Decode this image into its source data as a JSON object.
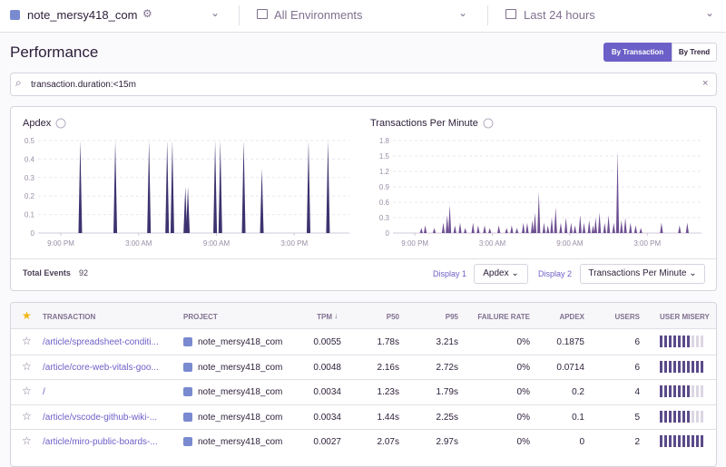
{
  "header": {
    "project": "note_mersy418_com",
    "environment": "All Environments",
    "period": "Last 24 hours"
  },
  "page": {
    "title": "Performance",
    "tabs": [
      "By Transaction",
      "By Trend"
    ],
    "search": "transaction.duration:<15m"
  },
  "chart_data": [
    {
      "type": "area",
      "title": "Apdex",
      "color": "#3d3370",
      "xlim": [
        19.25,
        43.25
      ],
      "xticks": [
        {
          "value": 21,
          "label": "9:00 PM"
        },
        {
          "value": 27,
          "label": "3:00 AM"
        },
        {
          "value": 33,
          "label": "9:00 AM"
        },
        {
          "value": 39,
          "label": "3:00 PM"
        }
      ],
      "ylim": [
        0,
        0.5
      ],
      "yticks": [
        0,
        0.1,
        0.2,
        0.3,
        0.4,
        0.5
      ],
      "grid": true,
      "x": [
        22.5,
        25.2,
        27.8,
        29.2,
        29.6,
        30.6,
        30.8,
        32.9,
        33.3,
        35.1,
        36.5,
        40.1,
        41.6
      ],
      "values": [
        0.5,
        0.5,
        0.5,
        0.5,
        0.5,
        0.25,
        0.25,
        0.5,
        0.5,
        0.5,
        0.35,
        0.5,
        0.5
      ]
    },
    {
      "type": "area",
      "title": "Transactions Per Minute",
      "color": "#6e4f92",
      "xlim": [
        19.3,
        43.2
      ],
      "xticks": [
        {
          "value": 21,
          "label": "9:00 PM"
        },
        {
          "value": 27,
          "label": "3:00 AM"
        },
        {
          "value": 33,
          "label": "9:00 AM"
        },
        {
          "value": 39,
          "label": "3:00 PM"
        }
      ],
      "ylim": [
        0,
        1.8
      ],
      "yticks": [
        0,
        0.3,
        0.6,
        0.9,
        1.2,
        1.5,
        1.8
      ],
      "grid": true,
      "x": [
        21.5,
        21.8,
        22.5,
        23.2,
        23.5,
        23.7,
        24.1,
        24.5,
        24.9,
        25.5,
        25.9,
        26.4,
        26.8,
        27.5,
        28.1,
        28.5,
        28.9,
        29.4,
        29.7,
        30.1,
        30.3,
        30.6,
        31.0,
        31.3,
        31.6,
        31.9,
        32.3,
        32.7,
        33.1,
        33.4,
        33.8,
        34.1,
        34.5,
        34.8,
        35.0,
        35.3,
        35.7,
        36.0,
        36.4,
        36.7,
        37.0,
        37.3,
        37.7,
        38.1,
        38.5,
        40.1,
        41.5,
        42.1
      ],
      "values": [
        0.1,
        0.15,
        0.1,
        0.2,
        0.35,
        0.55,
        0.15,
        0.2,
        0.1,
        0.2,
        0.15,
        0.15,
        0.1,
        0.15,
        0.1,
        0.15,
        0.1,
        0.2,
        0.2,
        0.25,
        0.4,
        0.8,
        0.2,
        0.15,
        0.3,
        0.5,
        0.2,
        0.3,
        0.2,
        0.15,
        0.35,
        0.2,
        0.25,
        0.15,
        0.3,
        0.4,
        0.2,
        0.35,
        0.2,
        1.6,
        0.25,
        0.3,
        0.2,
        0.15,
        0.1,
        0.2,
        0.15,
        0.2
      ]
    }
  ],
  "footer": {
    "total_label": "Total Events",
    "total": 92,
    "display1_label": "Display 1",
    "display1": "Apdex",
    "display2_label": "Display 2",
    "display2": "Transactions Per Minute"
  },
  "table": {
    "columns": [
      "TRANSACTION",
      "PROJECT",
      "TPM",
      "P50",
      "P95",
      "FAILURE RATE",
      "APDEX",
      "USERS",
      "USER MISERY"
    ],
    "rows": [
      [
        "/article/spreadsheet-conditi...",
        "note_mersy418_com",
        "0.0055",
        "1.78s",
        "3.21s",
        "0%",
        "0.1875",
        "6"
      ],
      [
        "/article/core-web-vitals-goo...",
        "note_mersy418_com",
        "0.0048",
        "2.16s",
        "2.72s",
        "0%",
        "0.0714",
        "6"
      ],
      [
        "/",
        "note_mersy418_com",
        "0.0034",
        "1.23s",
        "1.79s",
        "0%",
        "0.2",
        "4"
      ],
      [
        "/article/vscode-github-wiki-...",
        "note_mersy418_com",
        "0.0034",
        "1.44s",
        "2.25s",
        "0%",
        "0.1",
        "5"
      ],
      [
        "/article/miro-public-boards-...",
        "note_mersy418_com",
        "0.0027",
        "2.07s",
        "2.97s",
        "0%",
        "0",
        "2"
      ]
    ],
    "user_misery": [
      7,
      10,
      7,
      7,
      10
    ]
  }
}
